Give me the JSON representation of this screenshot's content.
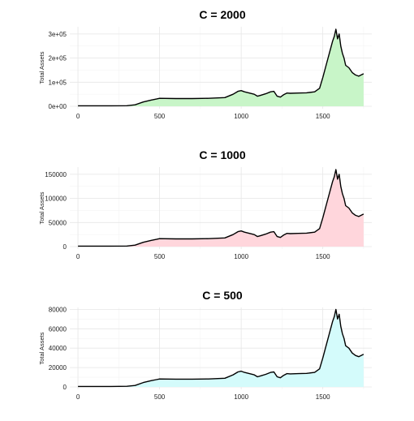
{
  "chart_data": [
    {
      "type": "area",
      "title": "C = 2000",
      "xlabel": "",
      "ylabel": "Total Assets",
      "fill_color": "#c8f5c8",
      "xlim": [
        -50,
        1800
      ],
      "ylim": [
        -10000,
        330000
      ],
      "x_ticks": [
        0,
        500,
        1000,
        1500
      ],
      "x_tick_labels": [
        "0",
        "500",
        "1000",
        "1500"
      ],
      "y_ticks": [
        0,
        100000,
        200000,
        300000
      ],
      "y_tick_labels": [
        "0e+00",
        "1e+05",
        "2e+05",
        "3e+05"
      ],
      "x": [
        0,
        100,
        200,
        300,
        350,
        400,
        450,
        480,
        500,
        600,
        700,
        800,
        900,
        950,
        980,
        1000,
        1020,
        1050,
        1080,
        1100,
        1120,
        1150,
        1180,
        1200,
        1220,
        1240,
        1260,
        1280,
        1300,
        1350,
        1400,
        1450,
        1480,
        1500,
        1520,
        1540,
        1560,
        1570,
        1580,
        1590,
        1600,
        1610,
        1620,
        1630,
        1640,
        1660,
        1680,
        1700,
        1720,
        1750
      ],
      "y": [
        2000,
        2000,
        2100,
        2500,
        6000,
        18000,
        26000,
        30000,
        33000,
        32000,
        32000,
        33000,
        36000,
        50000,
        62000,
        65000,
        60000,
        55000,
        50000,
        42000,
        46000,
        52000,
        60000,
        62000,
        42000,
        38000,
        48000,
        55000,
        54000,
        55000,
        56000,
        60000,
        75000,
        120000,
        170000,
        220000,
        270000,
        290000,
        320000,
        280000,
        300000,
        250000,
        220000,
        200000,
        170000,
        160000,
        140000,
        130000,
        125000,
        135000
      ]
    },
    {
      "type": "area",
      "title": "C = 1000",
      "xlabel": "",
      "ylabel": "Total Assets",
      "fill_color": "#ffd6dc",
      "xlim": [
        -50,
        1800
      ],
      "ylim": [
        -5000,
        165000
      ],
      "x_ticks": [
        0,
        500,
        1000,
        1500
      ],
      "x_tick_labels": [
        "0",
        "500",
        "1000",
        "1500"
      ],
      "y_ticks": [
        0,
        50000,
        100000,
        150000
      ],
      "y_tick_labels": [
        "0",
        "50000",
        "100000",
        "150000"
      ],
      "x": [
        0,
        100,
        200,
        300,
        350,
        400,
        450,
        480,
        500,
        600,
        700,
        800,
        900,
        950,
        980,
        1000,
        1020,
        1050,
        1080,
        1100,
        1120,
        1150,
        1180,
        1200,
        1220,
        1240,
        1260,
        1280,
        1300,
        1350,
        1400,
        1450,
        1480,
        1500,
        1520,
        1540,
        1560,
        1570,
        1580,
        1590,
        1600,
        1610,
        1620,
        1630,
        1640,
        1660,
        1680,
        1700,
        1720,
        1750
      ],
      "y": [
        1000,
        1000,
        1050,
        1300,
        3000,
        9000,
        13000,
        15000,
        16500,
        16000,
        16000,
        16500,
        18000,
        25000,
        31000,
        32500,
        30000,
        27500,
        25000,
        21000,
        23000,
        26000,
        30000,
        31000,
        21000,
        19000,
        24000,
        27500,
        27000,
        27500,
        28000,
        30000,
        37500,
        60000,
        85000,
        110000,
        135000,
        145000,
        160000,
        140000,
        150000,
        125000,
        110000,
        100000,
        85000,
        80000,
        70000,
        65000,
        62500,
        67500
      ]
    },
    {
      "type": "area",
      "title": "C = 500",
      "xlabel": "",
      "ylabel": "Total Assets",
      "fill_color": "#d4fbfb",
      "xlim": [
        -50,
        1800
      ],
      "ylim": [
        -2500,
        82000
      ],
      "x_ticks": [
        0,
        500,
        1000,
        1500
      ],
      "x_tick_labels": [
        "0",
        "500",
        "1000",
        "1500"
      ],
      "y_ticks": [
        0,
        20000,
        40000,
        60000,
        80000
      ],
      "y_tick_labels": [
        "0",
        "20000",
        "40000",
        "60000",
        "80000"
      ],
      "x": [
        0,
        100,
        200,
        300,
        350,
        400,
        450,
        480,
        500,
        600,
        700,
        800,
        900,
        950,
        980,
        1000,
        1020,
        1050,
        1080,
        1100,
        1120,
        1150,
        1180,
        1200,
        1220,
        1240,
        1260,
        1280,
        1300,
        1350,
        1400,
        1450,
        1480,
        1500,
        1520,
        1540,
        1560,
        1570,
        1580,
        1590,
        1600,
        1610,
        1620,
        1630,
        1640,
        1660,
        1680,
        1700,
        1720,
        1750
      ],
      "y": [
        500,
        500,
        520,
        650,
        1500,
        4500,
        6500,
        7500,
        8200,
        8000,
        8000,
        8200,
        9000,
        12500,
        15500,
        16200,
        15000,
        13700,
        12500,
        10500,
        11500,
        13000,
        15000,
        15500,
        10500,
        9500,
        12000,
        13700,
        13500,
        13700,
        14000,
        15000,
        18700,
        30000,
        42500,
        55000,
        67500,
        72500,
        80000,
        70000,
        75000,
        62500,
        55000,
        50000,
        42500,
        40000,
        35000,
        32500,
        31200,
        33700
      ]
    }
  ]
}
